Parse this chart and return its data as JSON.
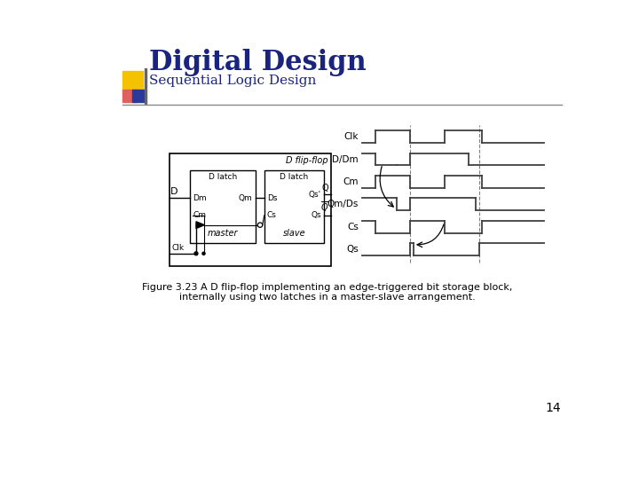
{
  "title": "Digital Design",
  "subtitle": "Sequential Logic Design",
  "figure_caption_line1": "Figure 3.23 A D flip-flop implementing an edge-triggered bit storage block,",
  "figure_caption_line2": "internally using two latches in a master-slave arrangement.",
  "page_number": "14",
  "bg_color": "#ffffff",
  "title_color": "#1a237e",
  "subtitle_color": "#1a237e",
  "caption_color": "#000000",
  "header_line_color": "#888888",
  "logo_yellow": "#f5c200",
  "logo_red": "#e06060",
  "logo_blue": "#2a3a9a"
}
